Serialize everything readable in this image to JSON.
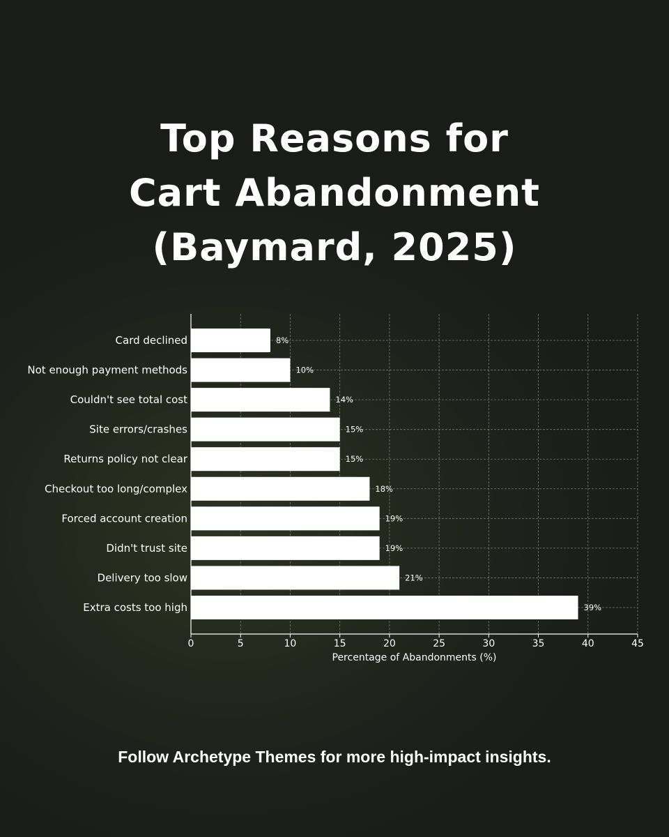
{
  "title": {
    "line1": "Top Reasons for",
    "line2": "Cart Abandonment",
    "line3": "(Baymard, 2025)"
  },
  "footer": {
    "text": "Follow Archetype Themes for more high-impact insights."
  },
  "colors": {
    "bar": "#ffffff",
    "text": "#ffffff",
    "grid": "#8a8f84"
  },
  "chart_data": {
    "type": "bar",
    "orientation": "horizontal",
    "categories": [
      "Card declined",
      "Not enough payment methods",
      "Couldn't see total cost",
      "Site errors/crashes",
      "Returns policy not clear",
      "Checkout too long/complex",
      "Forced account creation",
      "Didn't trust site",
      "Delivery too slow",
      "Extra costs too high"
    ],
    "values": [
      8,
      10,
      14,
      15,
      15,
      18,
      19,
      19,
      21,
      39
    ],
    "value_labels": [
      "8%",
      "10%",
      "14%",
      "15%",
      "15%",
      "18%",
      "19%",
      "19%",
      "21%",
      "39%"
    ],
    "xlabel": "Percentage of Abandonments (%)",
    "ylabel": "",
    "xlim": [
      0,
      45
    ],
    "xticks": [
      0,
      5,
      10,
      15,
      20,
      25,
      30,
      35,
      40,
      45
    ],
    "grid": true
  }
}
